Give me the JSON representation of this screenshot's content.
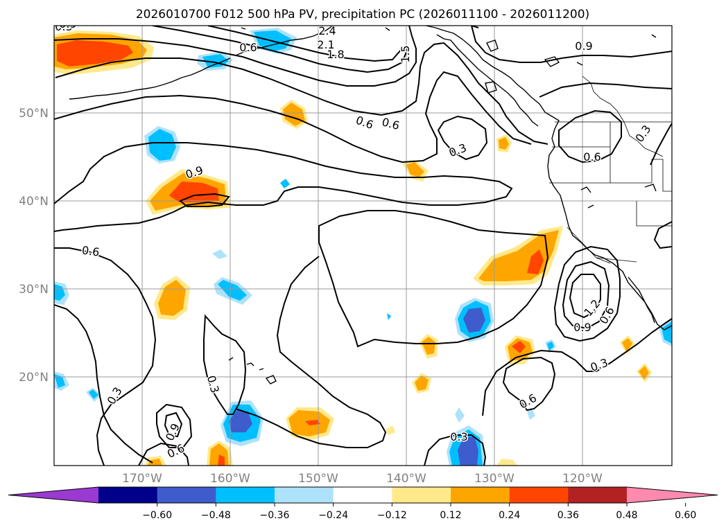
{
  "chart_data": {
    "type": "map",
    "title": "2026010700 F012 500 hPa PV, precipitation PC (2026011100 - 2026011200)",
    "lat_ticks": [
      "50°N",
      "40°N",
      "30°N",
      "20°N"
    ],
    "lon_ticks": [
      "170°W",
      "160°W",
      "150°W",
      "140°W",
      "130°W",
      "120°W"
    ],
    "lon_range": [
      -180,
      -110
    ],
    "lat_range": [
      10,
      60
    ],
    "colorbar": {
      "ticks": [
        "−0.60",
        "−0.48",
        "−0.36",
        "−0.24",
        "−0.12",
        "0.12",
        "0.24",
        "0.36",
        "0.48",
        "0.60"
      ],
      "colors": [
        "#9a3ad0",
        "#00008b",
        "#3e5ccc",
        "#00bfff",
        "#aee2fa",
        "#ffffff",
        "#ffe98a",
        "#ffa500",
        "#ff4500",
        "#b22222",
        "#ff8aaf"
      ],
      "extend": "both"
    },
    "pv_contour_labels": [
      "2.4",
      "2.1",
      "1.8",
      "1.5",
      "0.3",
      "0.6",
      "0.9",
      "0.6",
      "0.6",
      "0.3",
      "0.6",
      "0.3",
      "0.9",
      "0.6",
      "0.3",
      "0.3",
      "0.6",
      "0.9",
      "1.2",
      "0.9",
      "0.6",
      "0.6",
      "0.3",
      "0.3",
      "0.9"
    ]
  }
}
